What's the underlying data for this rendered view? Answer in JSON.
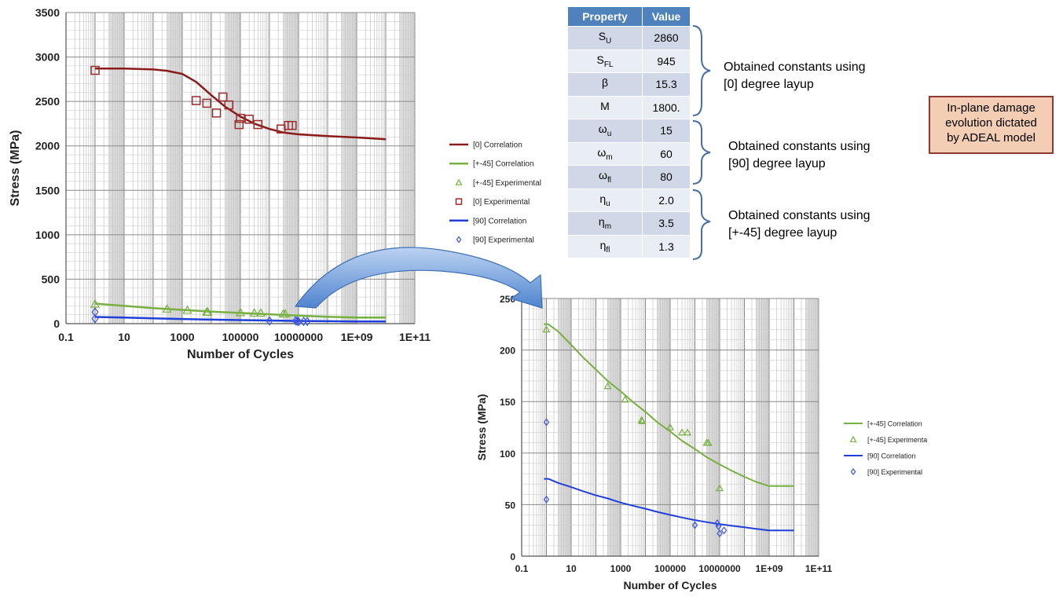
{
  "chart_data": [
    {
      "type": "scatter",
      "title": "",
      "xlabel": "Number of Cycles",
      "ylabel": "Stress (MPa)",
      "x_scale": "log",
      "xlim": [
        0.1,
        100000000000.0
      ],
      "ylim": [
        0,
        3500
      ],
      "x_tick_labels": [
        "0.1",
        "10",
        "1000",
        "100000",
        "10000000",
        "1E+09",
        "1E+11"
      ],
      "y_tick_labels": [
        "0",
        "500",
        "1000",
        "1500",
        "2000",
        "2500",
        "3000",
        "3500"
      ],
      "grid": true,
      "legend_position": "right",
      "series": [
        {
          "name": "[0] Correlation",
          "kind": "line",
          "color": "#8b1a1a",
          "x": [
            1,
            10,
            100,
            300,
            1000,
            3000,
            10000,
            30000,
            100000,
            300000,
            1000000,
            3000000,
            10000000,
            100000000,
            1000000000,
            10000000000
          ],
          "y": [
            2870,
            2870,
            2860,
            2845,
            2810,
            2720,
            2570,
            2440,
            2330,
            2250,
            2190,
            2150,
            2130,
            2110,
            2095,
            2075
          ]
        },
        {
          "name": "[+-45] Correlation",
          "kind": "line",
          "color": "#77b040",
          "x": [
            1,
            10,
            100,
            1000,
            10000,
            100000,
            1000000,
            10000000,
            100000000,
            1000000000,
            10000000000
          ],
          "y": [
            225,
            200,
            175,
            155,
            135,
            120,
            105,
            90,
            78,
            68,
            68
          ]
        },
        {
          "name": "[+-45] Experimental",
          "kind": "marker",
          "marker": "triangle",
          "color": "#77b040",
          "x": [
            1,
            300,
            1500,
            7000,
            7500,
            100000,
            300000,
            500000,
            3000000,
            3500000
          ],
          "y": [
            220,
            165,
            152,
            132,
            130,
            125,
            120,
            120,
            110,
            110
          ]
        },
        {
          "name": "[0] Experimental",
          "kind": "marker",
          "marker": "square",
          "color": "#9b2c2c",
          "x": [
            1,
            3000,
            7000,
            15000,
            25000,
            40000,
            90000,
            100000,
            200000,
            400000,
            2500000,
            4500000,
            6000000
          ],
          "y": [
            2850,
            2510,
            2480,
            2370,
            2550,
            2460,
            2240,
            2310,
            2300,
            2240,
            2190,
            2230,
            2230
          ]
        },
        {
          "name": "[90] Correlation",
          "kind": "line",
          "color": "#1f3fdb",
          "x": [
            1,
            10,
            100,
            1000,
            10000,
            100000,
            1000000,
            10000000,
            100000000,
            1000000000,
            10000000000
          ],
          "y": [
            75,
            68,
            60,
            52,
            45,
            40,
            35,
            30,
            27,
            25,
            25
          ]
        },
        {
          "name": "[90] Experimental",
          "kind": "marker",
          "marker": "diamond",
          "color": "#3b55e0",
          "x": [
            1,
            1,
            1000000,
            8000000,
            9000000,
            10000000,
            15000000,
            20000000
          ],
          "y": [
            130,
            55,
            30,
            32,
            28,
            22,
            25,
            24
          ]
        }
      ]
    },
    {
      "type": "scatter",
      "title": "",
      "xlabel": "Number of Cycles",
      "ylabel": "Stress (MPa)",
      "x_scale": "log",
      "xlim": [
        0.1,
        100000000000.0
      ],
      "ylim": [
        0,
        250
      ],
      "x_tick_labels": [
        "0.1",
        "10",
        "1000",
        "100000",
        "10000000",
        "1E+09",
        "1E+11"
      ],
      "y_tick_labels": [
        "0",
        "50",
        "100",
        "150",
        "200",
        "250"
      ],
      "grid": true,
      "legend_position": "right",
      "series": [
        {
          "name": "[+-45] Correlation",
          "kind": "line",
          "color": "#77b040",
          "x": [
            0.8,
            1.2,
            3,
            10,
            30,
            100,
            300,
            1000,
            3000,
            10000,
            30000,
            100000,
            300000,
            1000000,
            3000000,
            10000000,
            30000000,
            100000000,
            300000000,
            1000000000,
            1200000000,
            10000000000
          ],
          "y": [
            225,
            225,
            218,
            205,
            193,
            181,
            170,
            160,
            150,
            140,
            130,
            121,
            112,
            104,
            96,
            89,
            83,
            77,
            72,
            68,
            68,
            68
          ]
        },
        {
          "name": "[+-45] Experimental",
          "kind": "marker",
          "marker": "triangle",
          "color": "#77b040",
          "x": [
            1,
            300,
            1500,
            7000,
            7500,
            100000,
            300000,
            500000,
            3000000,
            3500000,
            10000000
          ],
          "y": [
            220,
            165,
            152,
            132,
            131,
            125,
            120,
            120,
            110,
            110,
            66
          ]
        },
        {
          "name": "[90] Correlation",
          "kind": "line",
          "color": "#1f3fdb",
          "x": [
            0.8,
            1.2,
            3,
            10,
            30,
            100,
            300,
            1000,
            3000,
            10000,
            30000,
            100000,
            300000,
            1000000,
            3000000,
            10000000,
            30000000,
            100000000,
            300000000,
            1000000000,
            3000000000,
            10000000000
          ],
          "y": [
            75,
            75,
            71,
            67,
            63,
            59,
            56,
            52,
            49,
            46,
            43,
            40,
            37.5,
            35,
            33,
            31,
            29.5,
            28,
            26.5,
            25,
            25,
            25
          ]
        },
        {
          "name": "[90] Experimental",
          "kind": "marker",
          "marker": "diamond",
          "color": "#3b55e0",
          "x": [
            1,
            1,
            1000000,
            8000000,
            9000000,
            10000000,
            15000000
          ],
          "y": [
            130,
            55,
            30,
            32,
            29,
            22,
            25
          ]
        }
      ]
    }
  ],
  "table": {
    "headers": [
      "Property",
      "Value"
    ],
    "rows": [
      {
        "sym": "S",
        "sub": "U",
        "value": "2860"
      },
      {
        "sym": "S",
        "sub": "FL",
        "value": "945"
      },
      {
        "sym": "β",
        "sub": "",
        "value": "15.3"
      },
      {
        "sym": "M",
        "sub": "",
        "value": "1800."
      },
      {
        "sym": "ω",
        "sub": "u",
        "value": "15"
      },
      {
        "sym": "ω",
        "sub": "m",
        "value": "60"
      },
      {
        "sym": "ω",
        "sub": "fl",
        "value": "80"
      },
      {
        "sym": "η",
        "sub": "u",
        "value": "2.0"
      },
      {
        "sym": "η",
        "sub": "m",
        "value": "3.5"
      },
      {
        "sym": "η",
        "sub": "fl",
        "value": "1.3"
      }
    ]
  },
  "groups": [
    {
      "line1": "Obtained constants using",
      "line2": "[0] degree layup"
    },
    {
      "line1": "Obtained constants using",
      "line2": "[90] degree layup"
    },
    {
      "line1": "Obtained constants using",
      "line2": "[+-45] degree layup"
    }
  ],
  "note": {
    "line1": "In-plane damage",
    "line2": "evolution dictated",
    "line3": "by ADEAL model"
  },
  "colors": {
    "correlation_0": "#8b1a1a",
    "correlation_45": "#77b040",
    "correlation_90": "#1f3fdb",
    "table_header": "#4f81bd",
    "note_fill": "#f3cdb4",
    "note_border": "#8c3a32",
    "arrow": "#5b8fd6"
  }
}
